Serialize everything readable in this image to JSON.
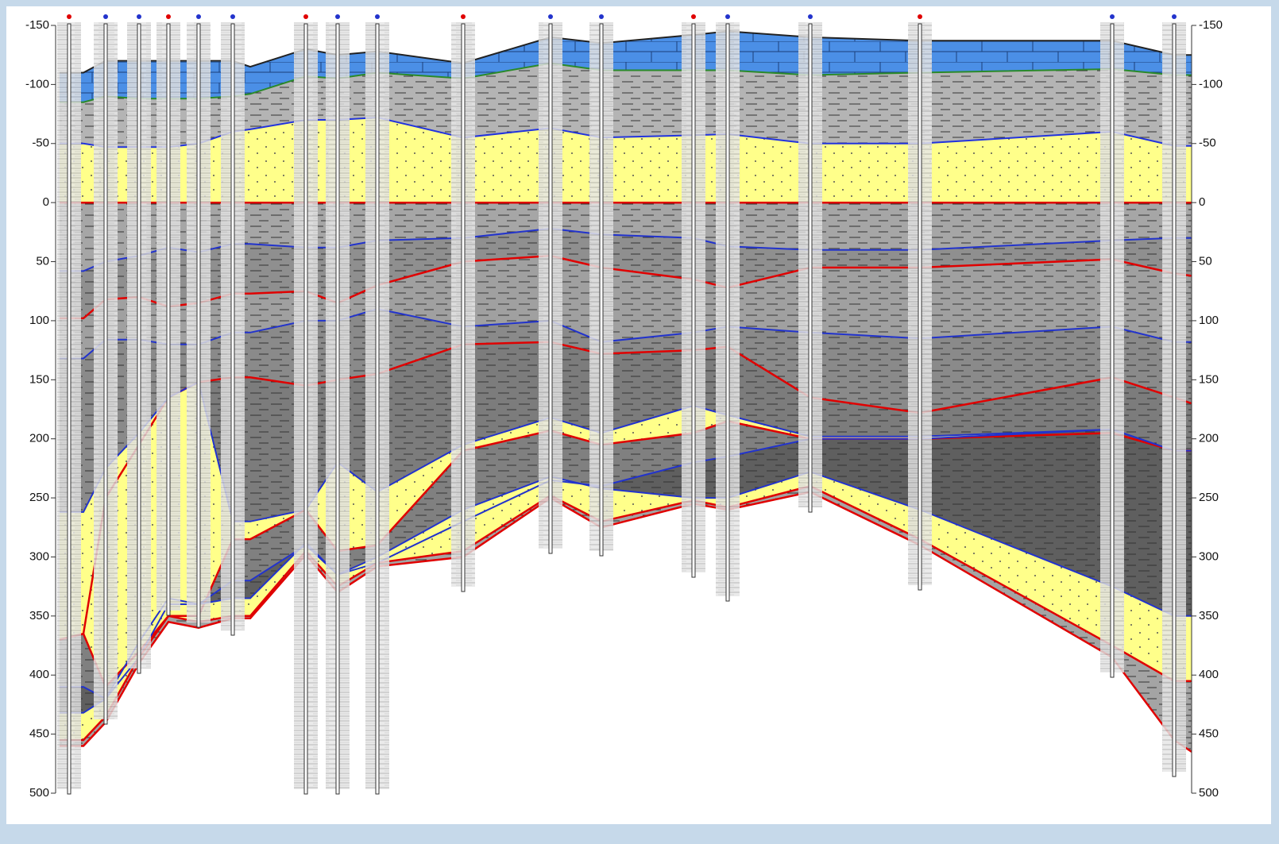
{
  "depth_axis": {
    "ticks": [
      -150,
      -100,
      -50,
      0,
      50,
      100,
      150,
      200,
      250,
      300,
      350,
      400,
      450,
      500
    ]
  }
}
